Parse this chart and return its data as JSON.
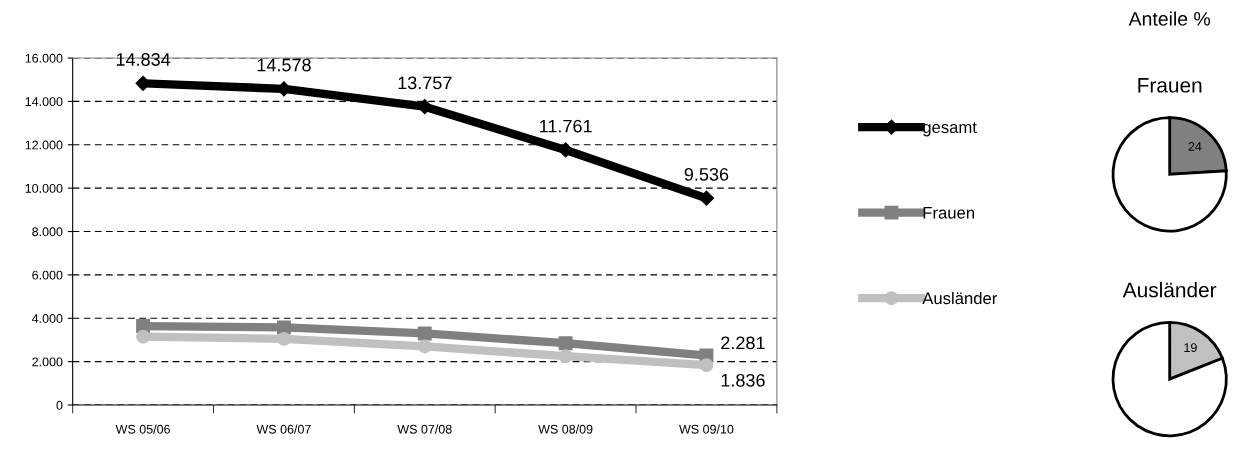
{
  "chart_data": [
    {
      "type": "line",
      "categories": [
        "WS 05/06",
        "WS 06/07",
        "WS 07/08",
        "WS 08/09",
        "WS 09/10"
      ],
      "ylim": [
        0,
        16000
      ],
      "yticks": [
        {
          "value": 0,
          "label": "0"
        },
        {
          "value": 2000,
          "label": "2.000"
        },
        {
          "value": 4000,
          "label": "4.000"
        },
        {
          "value": 6000,
          "label": "6.000"
        },
        {
          "value": 8000,
          "label": "8.000"
        },
        {
          "value": 10000,
          "label": "10.000"
        },
        {
          "value": 12000,
          "label": "12.000"
        },
        {
          "value": 14000,
          "label": "14.000"
        },
        {
          "value": 16000,
          "label": "16.000"
        }
      ],
      "grid": "y",
      "legend": "right",
      "series": [
        {
          "name": "gesamt",
          "color": "#000000",
          "marker": "diamond",
          "values": [
            14834,
            14578,
            13757,
            11761,
            9536
          ],
          "value_labels": [
            "14.834",
            "14.578",
            "13.757",
            "11.761",
            "9.536"
          ]
        },
        {
          "name": "Frauen",
          "color": "#808080",
          "marker": "square",
          "values": [
            3640,
            3580,
            3300,
            2850,
            2281
          ],
          "value_labels": [
            null,
            null,
            null,
            null,
            "2.281"
          ]
        },
        {
          "name": "Ausländer",
          "color": "#c0c0c0",
          "marker": "circle",
          "values": [
            3150,
            3050,
            2700,
            2250,
            1836
          ],
          "value_labels": [
            null,
            null,
            null,
            null,
            "1.836"
          ]
        }
      ]
    },
    {
      "type": "pie",
      "title": "Frauen",
      "annotations": [
        "Anteile %"
      ],
      "categories": [
        null,
        null
      ],
      "values": [
        24,
        76
      ],
      "colors": [
        "#808080",
        "#ffffff"
      ],
      "value_labels": [
        "24",
        null
      ]
    },
    {
      "type": "pie",
      "title": "Ausländer",
      "categories": [
        null,
        null
      ],
      "values": [
        19,
        81
      ],
      "colors": [
        "#c0c0c0",
        "#ffffff"
      ],
      "value_labels": [
        "19",
        null
      ]
    }
  ]
}
